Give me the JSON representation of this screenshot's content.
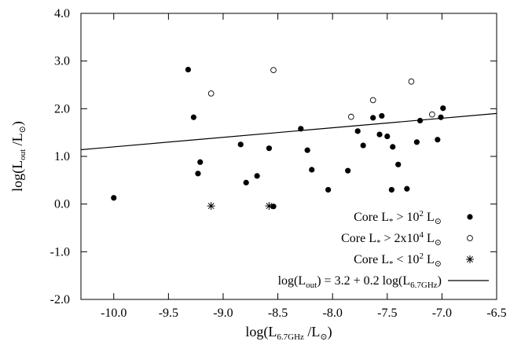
{
  "chart_data": {
    "type": "scatter",
    "xlim": [
      -10.3,
      -6.5
    ],
    "ylim": [
      -2.0,
      4.0
    ],
    "x_ticks": [
      {
        "value": -10.0,
        "label": "-10.0"
      },
      {
        "value": -9.5,
        "label": "-9.5"
      },
      {
        "value": -9.0,
        "label": "-9.0"
      },
      {
        "value": -8.5,
        "label": "-8.5"
      },
      {
        "value": -8.0,
        "label": "-8.0"
      },
      {
        "value": -7.5,
        "label": "-7.5"
      },
      {
        "value": -7.0,
        "label": "-7.0"
      },
      {
        "value": -6.5,
        "label": "-6.5"
      }
    ],
    "y_ticks": [
      {
        "value": -2.0,
        "label": "-2.0"
      },
      {
        "value": -1.0,
        "label": "-1.0"
      },
      {
        "value": 0.0,
        "label": "0.0"
      },
      {
        "value": 1.0,
        "label": "1.0"
      },
      {
        "value": 2.0,
        "label": "2.0"
      },
      {
        "value": 3.0,
        "label": "3.0"
      },
      {
        "value": 4.0,
        "label": "4.0"
      }
    ],
    "xlabel": {
      "pre": "log(L",
      "sub1": "6.7GHz",
      "mid": " /L",
      "sub2": "⊙",
      "post": ")"
    },
    "ylabel": {
      "pre": "log(L",
      "sub1": "out",
      "mid": " /L",
      "sub2": "⊙",
      "post": ")"
    },
    "grid": false,
    "legend_position": "bottom-right",
    "series": [
      {
        "name": "Core L* > 10^2 L⊙",
        "marker": "filled-circle",
        "legend": {
          "parts": [
            {
              "t": "Core L"
            },
            {
              "t": "*",
              "sub": true
            },
            {
              "t": " > 10"
            },
            {
              "t": "2",
              "sup": true
            },
            {
              "t": " L"
            },
            {
              "t": "⊙",
              "sub": true
            }
          ]
        },
        "points": [
          [
            -10.0,
            0.13
          ],
          [
            -9.32,
            2.82
          ],
          [
            -9.27,
            1.82
          ],
          [
            -9.23,
            0.64
          ],
          [
            -9.21,
            0.88
          ],
          [
            -8.84,
            1.25
          ],
          [
            -8.79,
            0.45
          ],
          [
            -8.69,
            0.59
          ],
          [
            -8.58,
            1.17
          ],
          [
            -8.54,
            -0.05
          ],
          [
            -8.29,
            1.58
          ],
          [
            -8.23,
            1.13
          ],
          [
            -8.19,
            0.72
          ],
          [
            -8.04,
            0.3
          ],
          [
            -7.86,
            0.7
          ],
          [
            -7.77,
            1.53
          ],
          [
            -7.72,
            1.23
          ],
          [
            -7.63,
            1.81
          ],
          [
            -7.57,
            1.46
          ],
          [
            -7.55,
            1.85
          ],
          [
            -7.5,
            1.42
          ],
          [
            -7.46,
            0.3
          ],
          [
            -7.45,
            1.2
          ],
          [
            -7.4,
            0.83
          ],
          [
            -7.32,
            0.32
          ],
          [
            -7.23,
            1.3
          ],
          [
            -7.2,
            1.75
          ],
          [
            -7.04,
            1.35
          ],
          [
            -7.01,
            1.82
          ],
          [
            -6.99,
            2.01
          ]
        ]
      },
      {
        "name": "Core L* > 2x10^4 L⊙",
        "marker": "open-circle",
        "legend": {
          "parts": [
            {
              "t": "Core L"
            },
            {
              "t": "*",
              "sub": true
            },
            {
              "t": " > 2x10"
            },
            {
              "t": "4",
              "sup": true
            },
            {
              "t": " L"
            },
            {
              "t": "⊙",
              "sub": true
            }
          ]
        },
        "points": [
          [
            -9.11,
            2.32
          ],
          [
            -8.54,
            2.81
          ],
          [
            -7.83,
            1.83
          ],
          [
            -7.63,
            2.18
          ],
          [
            -7.28,
            2.57
          ],
          [
            -7.09,
            1.88
          ]
        ]
      },
      {
        "name": "Core L* < 10^2 L⊙",
        "marker": "asterisk",
        "legend": {
          "parts": [
            {
              "t": "Core L"
            },
            {
              "t": "*",
              "sub": true
            },
            {
              "t": " < 10"
            },
            {
              "t": "2",
              "sup": true
            },
            {
              "t": " L"
            },
            {
              "t": "⊙",
              "sub": true
            }
          ]
        },
        "points": [
          [
            -9.11,
            -0.04
          ],
          [
            -8.58,
            -0.04
          ]
        ]
      },
      {
        "name": "log(L_out) = 3.2 + 0.2 log(L_6.7GHz)",
        "marker": "line",
        "legend": {
          "parts": [
            {
              "t": "log(L"
            },
            {
              "t": "out",
              "sub": true
            },
            {
              "t": ") = 3.2 + 0.2 log(L"
            },
            {
              "t": "6.7GHz",
              "sub": true
            },
            {
              "t": ")"
            }
          ]
        },
        "line": {
          "intercept": 3.2,
          "slope": 0.2
        }
      }
    ]
  }
}
